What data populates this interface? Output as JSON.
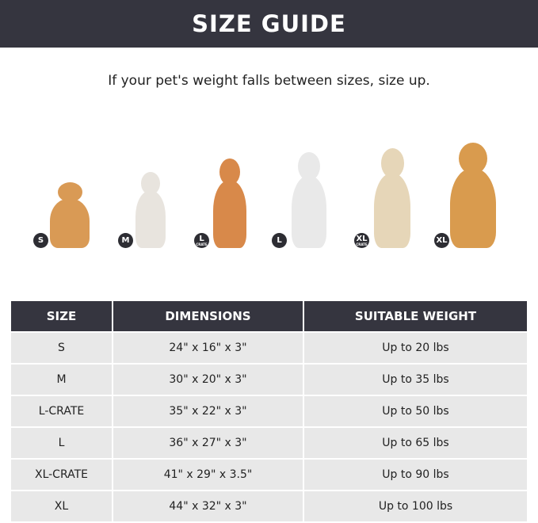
{
  "title": "SIZE GUIDE",
  "subtitle": "If your pet's weight falls between sizes, size up.",
  "dogs": [
    {
      "badge": "S",
      "sub": "",
      "color": "#d99a55"
    },
    {
      "badge": "M",
      "sub": "",
      "color": "#e8e4de"
    },
    {
      "badge": "L",
      "sub": "CRATE",
      "color": "#d8894a"
    },
    {
      "badge": "L",
      "sub": "",
      "color": "#e9e9e9"
    },
    {
      "badge": "XL",
      "sub": "CRATE",
      "color": "#e6d6b8"
    },
    {
      "badge": "XL",
      "sub": "",
      "color": "#d99b4e"
    }
  ],
  "table": {
    "headers": [
      "SIZE",
      "DIMENSIONS",
      "SUITABLE WEIGHT"
    ],
    "rows": [
      [
        "S",
        "24\" x 16\" x 3\"",
        "Up to 20 lbs"
      ],
      [
        "M",
        "30\" x 20\" x 3\"",
        "Up to 35 lbs"
      ],
      [
        "L-CRATE",
        "35\" x 22\" x 3\"",
        "Up to 50 lbs"
      ],
      [
        "L",
        "36\" x 27\" x 3\"",
        "Up to 65 lbs"
      ],
      [
        "XL-CRATE",
        "41\" x 29\" x 3.5\"",
        "Up to 90 lbs"
      ],
      [
        "XL",
        "44\" x 32\" x 3\"",
        "Up to 100 lbs"
      ]
    ]
  }
}
